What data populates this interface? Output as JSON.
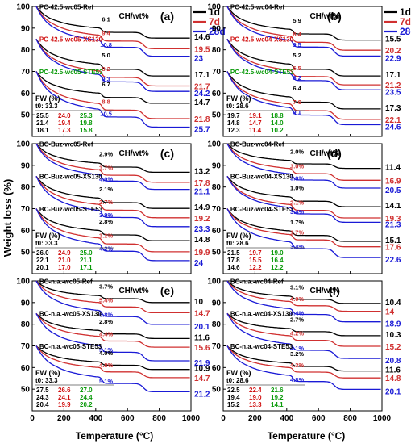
{
  "figure": {
    "ylabel": "Weight loss (%)",
    "xlabel": "Temperature (°C)",
    "curve_colors": {
      "d1": "#000000",
      "d7": "#d03030",
      "d28": "#1a1ad6"
    },
    "label_colors": {
      "ref": "#000000",
      "xs": "#d01010",
      "ste": "#0a9a0a"
    }
  },
  "chart_data": [
    {
      "type": "line",
      "panel": "(a)",
      "xlim": [
        0,
        1000
      ],
      "ylim": [
        40,
        100
      ],
      "yticks": [
        50,
        60,
        70,
        80,
        90,
        100
      ],
      "xticks": [
        0,
        200,
        400,
        600,
        800,
        1000
      ],
      "show_xticks": false,
      "legend": [
        "1d",
        "7d",
        "28d"
      ],
      "ch_title": "CH/wt%",
      "groups": [
        {
          "label": "PC-42.5-wc05-Ref",
          "color": "ref",
          "start": 100,
          "final": [
            14.6,
            19.5,
            23.0
          ],
          "ch": [
            "6.1",
            "9.4",
            "10.8"
          ]
        },
        {
          "label": "PC-42.5-wc05-XS130",
          "color": "xs",
          "start": 85,
          "final": [
            17.1,
            21.7,
            24.2
          ],
          "ch": [
            "5.0",
            "8.2",
            "9.3"
          ]
        },
        {
          "label": "PC-42.5-wc05-STE53",
          "color": "ste",
          "start": 70,
          "final": [
            14.7,
            21.8,
            25.7
          ],
          "ch": [
            "6.7",
            "8.8",
            "10.5"
          ]
        }
      ],
      "fw_title": "FW (%)",
      "t0": "t0: 33.3",
      "fw": [
        [
          "25.5",
          "24.0",
          "25.3"
        ],
        [
          "21.4",
          "19.4",
          "19.8"
        ],
        [
          "18.1",
          "17.3",
          "15.8"
        ]
      ]
    },
    {
      "type": "line",
      "panel": "(b)",
      "xlim": [
        0,
        1000
      ],
      "ylim": [
        40,
        100
      ],
      "yticks": [
        50,
        60,
        70,
        80,
        90,
        100
      ],
      "xticks": [
        0,
        200,
        400,
        600,
        800,
        1000
      ],
      "show_xticks": false,
      "legend": [
        "1d",
        "7d",
        "28d"
      ],
      "ch_title": "CH/wt%",
      "groups": [
        {
          "label": "PC-42.5-wc04-Ref",
          "color": "ref",
          "start": 100,
          "final": [
            15.5,
            20.2,
            22.9
          ],
          "ch": [
            "5.9",
            "8.4",
            "9.5"
          ]
        },
        {
          "label": "PC-42.5-wc04-XS130",
          "color": "xs",
          "start": 85,
          "final": [
            17.1,
            21.2,
            23.5
          ],
          "ch": [
            "5.2",
            "6.5",
            "8.2"
          ]
        },
        {
          "label": "PC-42.5-wc04-STE53",
          "color": "ste",
          "start": 70,
          "final": [
            17.3,
            22.1,
            24.6
          ],
          "ch": [
            "6.4",
            "7.6",
            "9.1"
          ]
        }
      ],
      "fw_title": "FW (%)",
      "t0": "t0: 28.6",
      "fw": [
        [
          "19.7",
          "19.1",
          "18.8"
        ],
        [
          "14.8",
          "14.7",
          "14.0"
        ],
        [
          "12.3",
          "11.4",
          "10.2"
        ]
      ]
    },
    {
      "type": "line",
      "panel": "(c)",
      "xlim": [
        0,
        1000
      ],
      "ylim": [
        40,
        100
      ],
      "yticks": [
        50,
        60,
        70,
        80,
        90,
        100
      ],
      "xticks": [
        0,
        200,
        400,
        600,
        800,
        1000
      ],
      "show_xticks": false,
      "ch_title": "CH/wt%",
      "groups": [
        {
          "label": "BC-Buz-wc05-Ref",
          "color": "ref",
          "start": 100,
          "final": [
            13.2,
            17.8,
            21.1
          ],
          "ch": [
            "2.9%",
            "3.7%",
            "4.0%"
          ]
        },
        {
          "label": "BC-Buz-wc05-XS130",
          "color": "ref",
          "start": 85,
          "final": [
            14.9,
            19.2,
            23.3
          ],
          "ch": [
            "2.1%",
            "2.7%",
            "3.9%"
          ]
        },
        {
          "label": "BC-Buz-wc05-STE53",
          "color": "ref",
          "start": 70,
          "final": [
            14.8,
            19.9,
            24.0
          ],
          "ch": [
            "2.8%",
            "3.2%",
            "4.2%"
          ]
        }
      ],
      "fw_title": "FW (%)",
      "t0": "t0: 33.3",
      "fw": [
        [
          "26.0",
          "24.9",
          "25.0"
        ],
        [
          "22.1",
          "21.0",
          "21.1"
        ],
        [
          "20.1",
          "17.0",
          "17.1"
        ]
      ]
    },
    {
      "type": "line",
      "panel": "(d)",
      "xlim": [
        0,
        1000
      ],
      "ylim": [
        40,
        100
      ],
      "yticks": [
        50,
        60,
        70,
        80,
        90,
        100
      ],
      "xticks": [
        0,
        200,
        400,
        600,
        800,
        1000
      ],
      "show_xticks": false,
      "ch_title": "CH/wt%",
      "groups": [
        {
          "label": "BC-Buz-wc04-Ref",
          "color": "ref",
          "start": 100,
          "final": [
            11.4,
            16.9,
            20.5
          ],
          "ch": [
            "2.0%",
            "3.0%",
            "3.9%"
          ]
        },
        {
          "label": "BC-Buz-wc04-XS130",
          "color": "ref",
          "start": 85,
          "final": [
            14.1,
            19.3,
            21.3
          ],
          "ch": [
            "1.0%",
            "2.1%",
            "3.4%"
          ]
        },
        {
          "label": "BC-Buz-wc04-STE53",
          "color": "ref",
          "start": 70,
          "final": [
            15.1,
            17.6,
            22.6
          ],
          "ch": [
            "1.7%",
            "1.7%",
            "3.4%"
          ]
        }
      ],
      "fw_title": "FW (%)",
      "t0": "t0: 28.6",
      "fw": [
        [
          "21.5",
          "19.7",
          "19.0"
        ],
        [
          "17.8",
          "15.5",
          "16.4"
        ],
        [
          "14.6",
          "12.2",
          "12.2"
        ]
      ]
    },
    {
      "type": "line",
      "panel": "(e)",
      "xlim": [
        0,
        1000
      ],
      "ylim": [
        40,
        100
      ],
      "yticks": [
        50,
        60,
        70,
        80,
        90,
        100
      ],
      "xticks": [
        0,
        200,
        400,
        600,
        800,
        1000
      ],
      "show_xticks": true,
      "ch_title": "CH/wt%",
      "groups": [
        {
          "label": "BC-n.a.-wc05-Ref",
          "color": "ref",
          "start": 100,
          "final": [
            10.0,
            14.7,
            20.1
          ],
          "ch": [
            "3.7%",
            "5.4%",
            "5.8%"
          ]
        },
        {
          "label": "BC-n.a.-wc05-XS130",
          "color": "ref",
          "start": 85,
          "final": [
            11.6,
            15.6,
            21.9
          ],
          "ch": [
            "2.8%",
            "4.4%",
            "5.1%"
          ]
        },
        {
          "label": "BC-n.a.-wc05-STE53",
          "color": "ref",
          "start": 70,
          "final": [
            10.9,
            14.7,
            21.2
          ],
          "ch": [
            "4.0%",
            "4.8%",
            "5.1%"
          ]
        }
      ],
      "fw_title": "FW (%)",
      "t0": "t0: 33.3",
      "fw": [
        [
          "27.5",
          "26.6",
          "27.0"
        ],
        [
          "24.3",
          "24.1",
          "24.4"
        ],
        [
          "20.4",
          "19.9",
          "20.2"
        ]
      ]
    },
    {
      "type": "line",
      "panel": "(f)",
      "xlim": [
        0,
        1000
      ],
      "ylim": [
        40,
        100
      ],
      "yticks": [
        50,
        60,
        70,
        80,
        90,
        100
      ],
      "xticks": [
        0,
        200,
        400,
        600,
        800,
        1000
      ],
      "show_xticks": true,
      "ch_title": "CH/wt%",
      "groups": [
        {
          "label": "BC-n.a.-wc04-Ref",
          "color": "ref",
          "start": 100,
          "final": [
            10.4,
            14.0,
            18.9
          ],
          "ch": [
            "3.1%",
            "4.0%",
            "4.4%"
          ]
        },
        {
          "label": "BC-n.a.-wc04-XS130",
          "color": "ref",
          "start": 85,
          "final": [
            10.3,
            15.2,
            20.8
          ],
          "ch": [
            "2.7%",
            "4.2%",
            "4.1%"
          ]
        },
        {
          "label": "BC-n.a.-wc04-STE53",
          "color": "ref",
          "start": 70,
          "final": [
            11.6,
            14.8,
            20.1
          ],
          "ch": [
            "3.2%",
            "4.3%",
            "4.8%"
          ]
        }
      ],
      "fw_title": "FW (%)",
      "t0": "t0: 28.6",
      "fw": [
        [
          "22.5",
          "22.4",
          "21.6"
        ],
        [
          "19.4",
          "19.0",
          "19.2"
        ],
        [
          "15.2",
          "13.3",
          "14.1"
        ]
      ]
    }
  ]
}
